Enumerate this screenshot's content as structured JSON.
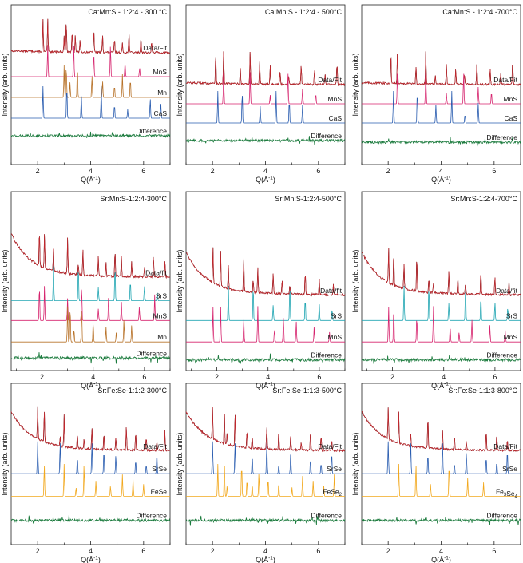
{
  "figure": {
    "ylabel": "Intensity (arb. units)",
    "xlabel": "Q(Å",
    "xlabel_exp": "-1",
    "xlabel_close": ")"
  },
  "chart_data": [
    {
      "type": "line",
      "title": "Ca:Mn:S - 1:2:4 - 300 °C",
      "xlim": [
        1,
        7
      ],
      "xticks": [
        2,
        4,
        6
      ],
      "series": [
        {
          "name": "Data/Fit",
          "label": "Data/Fit",
          "color": "#c0272d",
          "base": 0.7,
          "bg": "flat",
          "peaks": [
            2.2,
            2.38,
            3.0,
            3.08,
            3.3,
            3.42,
            3.6,
            4.12,
            4.45,
            4.9,
            5.2,
            5.45,
            5.9,
            6.3
          ]
        },
        {
          "name": "MnS",
          "label": "MnS",
          "color": "#d6246e",
          "base": 0.55,
          "bg": "none",
          "peaks": [
            2.38,
            3.36,
            4.12,
            4.75,
            5.3,
            5.85
          ]
        },
        {
          "name": "Mn",
          "label": "Mn",
          "color": "#b8732a",
          "base": 0.42,
          "bg": "none",
          "peaks": [
            3.0,
            3.08,
            3.22,
            3.5,
            4.05,
            4.45,
            4.9,
            5.2,
            5.5
          ]
        },
        {
          "name": "CaS",
          "label": "CaS",
          "color": "#2a5db0",
          "base": 0.29,
          "bg": "none",
          "peaks": [
            2.2,
            3.1,
            3.65,
            4.4,
            4.9,
            5.4,
            6.25,
            6.65
          ]
        },
        {
          "name": "Difference",
          "label": "Difference",
          "color": "#1a7a3c",
          "base": 0.18,
          "bg": "diff",
          "peaks": []
        }
      ]
    },
    {
      "type": "line",
      "title": "Ca:Mn:S - 1:2:4 - 500°C",
      "xlim": [
        1,
        7
      ],
      "xticks": [
        2,
        4,
        6
      ],
      "series": [
        {
          "name": "Data/Fit",
          "label": "Data/Fit",
          "color": "#c0272d",
          "base": 0.5,
          "bg": "flat",
          "peaks": [
            2.12,
            2.42,
            3.05,
            3.42,
            3.78,
            4.18,
            4.55,
            4.88,
            5.35,
            5.85,
            6.25,
            6.7
          ]
        },
        {
          "name": "MnS",
          "label": "MnS",
          "color": "#d6246e",
          "base": 0.38,
          "bg": "none",
          "peaks": [
            2.42,
            3.42,
            4.18,
            4.85,
            5.4,
            5.9
          ]
        },
        {
          "name": "CaS",
          "label": "CaS",
          "color": "#2a5db0",
          "base": 0.26,
          "bg": "none",
          "peaks": [
            2.2,
            3.12,
            3.8,
            4.4,
            4.9,
            5.4
          ]
        },
        {
          "name": "Difference",
          "label": "Difference",
          "color": "#1a7a3c",
          "base": 0.15,
          "bg": "diff",
          "peaks": []
        }
      ]
    },
    {
      "type": "line",
      "title": "Ca:Mn:S - 1:2:4 -700°C",
      "xlim": [
        1,
        7
      ],
      "xticks": [
        2,
        4,
        6
      ],
      "series": [
        {
          "name": "Data/Fit",
          "label": "Data/Fit",
          "color": "#c0272d",
          "base": 0.5,
          "bg": "flat",
          "peaks": [
            2.1,
            2.35,
            3.05,
            3.42,
            3.78,
            4.2,
            4.55,
            4.88,
            5.35,
            5.85,
            6.25,
            6.7
          ]
        },
        {
          "name": "MnS",
          "label": "MnS",
          "color": "#d6246e",
          "base": 0.38,
          "bg": "none",
          "peaks": [
            2.35,
            3.42,
            4.2,
            4.85,
            5.4,
            5.9
          ]
        },
        {
          "name": "CaS",
          "label": "CaS",
          "color": "#2a5db0",
          "base": 0.26,
          "bg": "none",
          "peaks": [
            2.2,
            3.1,
            3.8,
            4.4,
            4.9,
            5.4
          ]
        },
        {
          "name": "Difference",
          "label": "Difference",
          "color": "#1a7a3c",
          "base": 0.14,
          "bg": "diff",
          "peaks": []
        }
      ]
    },
    {
      "type": "line",
      "title": "Sr:Mn:S-1:2:4-300°C",
      "xlim": [
        0.8,
        7
      ],
      "xticks": [
        2,
        4,
        6
      ],
      "series": [
        {
          "name": "Data/fit",
          "label": "Data/fit",
          "color": "#c0272d",
          "base": 0.52,
          "bg": "decay",
          "peaks": [
            1.9,
            2.1,
            2.45,
            3.0,
            3.42,
            3.6,
            4.2,
            4.5,
            4.85,
            5.1,
            5.5,
            6.0,
            6.35,
            6.8
          ]
        },
        {
          "name": "SrS",
          "label": "SrS",
          "color": "#22a6b3",
          "base": 0.39,
          "bg": "none",
          "peaks": [
            2.45,
            3.42,
            4.2,
            4.85,
            5.45,
            6.0,
            6.5
          ]
        },
        {
          "name": "MnS",
          "label": "MnS",
          "color": "#d6246e",
          "base": 0.28,
          "bg": "none",
          "peaks": [
            1.9,
            2.1,
            3.0,
            3.55,
            4.2,
            4.6,
            5.1,
            5.8,
            6.4
          ]
        },
        {
          "name": "Mn",
          "label": "Mn",
          "color": "#b8732a",
          "base": 0.16,
          "bg": "none",
          "peaks": [
            3.0,
            3.1,
            3.25,
            3.55,
            4.0,
            4.5,
            4.9,
            5.2,
            5.5
          ]
        },
        {
          "name": "Difference",
          "label": "Difference",
          "color": "#1a7a3c",
          "base": 0.07,
          "bg": "diff",
          "peaks": []
        }
      ]
    },
    {
      "type": "line",
      "title": "Sr:Mn:S-1:2:4-500°C",
      "xlim": [
        0.8,
        7
      ],
      "xticks": [
        2,
        4,
        6
      ],
      "series": [
        {
          "name": "Data/fit",
          "label": "Data/fit",
          "color": "#c0272d",
          "base": 0.42,
          "bg": "decay",
          "peaks": [
            1.85,
            2.15,
            2.45,
            3.05,
            3.42,
            3.6,
            4.2,
            4.55,
            4.85,
            5.45,
            6.0,
            6.55
          ]
        },
        {
          "name": "SrS",
          "label": "SrS",
          "color": "#22a6b3",
          "base": 0.28,
          "bg": "none",
          "peaks": [
            2.45,
            3.42,
            4.2,
            4.85,
            5.45,
            6.0,
            6.5
          ]
        },
        {
          "name": "MnS",
          "label": "MnS",
          "color": "#d6246e",
          "base": 0.16,
          "bg": "none",
          "peaks": [
            1.85,
            2.15,
            3.05,
            3.6,
            4.25,
            4.6,
            5.1,
            5.8,
            6.4
          ]
        },
        {
          "name": "Difference",
          "label": "Difference",
          "color": "#1a7a3c",
          "base": 0.06,
          "bg": "diff",
          "peaks": []
        }
      ]
    },
    {
      "type": "line",
      "title": "Sr:Mn:S-1:2:4-700°C",
      "xlim": [
        0.8,
        7
      ],
      "xticks": [
        2,
        4,
        6
      ],
      "series": [
        {
          "name": "Data/fit",
          "label": "Data/fit",
          "color": "#c0272d",
          "base": 0.42,
          "bg": "decay",
          "peaks": [
            1.85,
            2.05,
            2.45,
            2.95,
            3.42,
            3.6,
            4.2,
            4.55,
            4.85,
            5.45,
            6.0,
            6.55
          ]
        },
        {
          "name": "SrS",
          "label": "SrS",
          "color": "#22a6b3",
          "base": 0.28,
          "bg": "none",
          "peaks": [
            2.45,
            3.42,
            4.2,
            4.85,
            5.45,
            6.0,
            6.5
          ]
        },
        {
          "name": "MnS",
          "label": "MnS",
          "color": "#d6246e",
          "base": 0.16,
          "bg": "none",
          "peaks": [
            1.85,
            2.05,
            2.95,
            3.6,
            4.25,
            4.6,
            5.1,
            5.8,
            6.4
          ]
        },
        {
          "name": "Difference",
          "label": "Difference",
          "color": "#1a7a3c",
          "base": 0.06,
          "bg": "diff",
          "peaks": []
        }
      ]
    },
    {
      "type": "line",
      "title": "Sr:Fe:Se-1:1:2-300°C",
      "xlim": [
        1,
        7
      ],
      "xticks": [
        2,
        4,
        6
      ],
      "series": [
        {
          "name": "Data/Fit",
          "label": "Data/Fit",
          "color": "#c0272d",
          "base": 0.58,
          "bg": "decay",
          "peaks": [
            2.0,
            2.25,
            2.85,
            3.0,
            3.5,
            3.75,
            4.05,
            4.5,
            4.95,
            5.35,
            5.7,
            6.1,
            6.5,
            6.8
          ]
        },
        {
          "name": "SrSe",
          "label": "SrSe",
          "color": "#2a5db0",
          "base": 0.44,
          "bg": "none",
          "peaks": [
            2.0,
            2.85,
            3.5,
            4.05,
            4.5,
            4.95,
            5.7,
            6.1,
            6.5
          ]
        },
        {
          "name": "FeSe",
          "label": "FeSe",
          "color": "#f2a81d",
          "base": 0.3,
          "bg": "none",
          "peaks": [
            2.25,
            3.0,
            3.45,
            3.75,
            4.2,
            4.75,
            5.2,
            5.6,
            6.0
          ]
        },
        {
          "name": "Difference",
          "label": "Difference",
          "color": "#1a7a3c",
          "base": 0.15,
          "bg": "diff",
          "peaks": []
        }
      ]
    },
    {
      "type": "line",
      "title": "Sr:Fe:Se-1:1:3-500°C",
      "xlim": [
        1,
        7
      ],
      "xticks": [
        2,
        4,
        6
      ],
      "series": [
        {
          "name": "Data/Fit",
          "label": "Data/Fit",
          "color": "#c0272d",
          "base": 0.58,
          "bg": "decay",
          "peaks": [
            2.0,
            2.45,
            2.55,
            2.85,
            3.3,
            3.5,
            4.05,
            4.5,
            4.95,
            5.35,
            5.7,
            6.1,
            6.5
          ]
        },
        {
          "name": "SrSe",
          "label": "SrSe",
          "color": "#2a5db0",
          "base": 0.44,
          "bg": "none",
          "peaks": [
            2.0,
            2.85,
            3.5,
            4.05,
            4.5,
            4.95,
            5.7,
            6.1,
            6.5
          ]
        },
        {
          "name": "FeSe2",
          "label": "FeSe",
          "sub": "2",
          "color": "#f2a81d",
          "base": 0.3,
          "bg": "none",
          "peaks": [
            2.2,
            2.45,
            2.55,
            3.1,
            3.3,
            3.5,
            3.75,
            4.1,
            4.5,
            5.0,
            5.4,
            5.8,
            6.2,
            6.6
          ]
        },
        {
          "name": "Difference",
          "label": "Difference",
          "color": "#1a7a3c",
          "base": 0.15,
          "bg": "diff",
          "peaks": []
        }
      ]
    },
    {
      "type": "line",
      "title": "Sr:Fe:Se-1:1:3-800°C",
      "xlim": [
        1,
        7
      ],
      "xticks": [
        2,
        4,
        6
      ],
      "series": [
        {
          "name": "Data/Fit",
          "label": "Data/Fit",
          "color": "#c0272d",
          "base": 0.58,
          "bg": "decay",
          "peaks": [
            2.0,
            2.4,
            2.85,
            3.5,
            4.05,
            4.5,
            4.95,
            5.7,
            6.1,
            6.5
          ]
        },
        {
          "name": "SrSe",
          "label": "SrSe",
          "color": "#2a5db0",
          "base": 0.44,
          "bg": "none",
          "peaks": [
            2.0,
            2.85,
            3.5,
            4.05,
            4.5,
            4.95,
            5.7,
            6.1,
            6.5
          ]
        },
        {
          "name": "Fe3Se4",
          "label": "Fe",
          "sub": "3",
          "label2": "Se",
          "sub2": "4",
          "color": "#f2a81d",
          "base": 0.3,
          "bg": "none",
          "peaks": [
            2.4,
            3.05,
            3.6,
            4.3,
            5.0,
            5.6
          ]
        },
        {
          "name": "Difference",
          "label": "Difference",
          "color": "#1a7a3c",
          "base": 0.15,
          "bg": "diff",
          "peaks": []
        }
      ]
    }
  ]
}
